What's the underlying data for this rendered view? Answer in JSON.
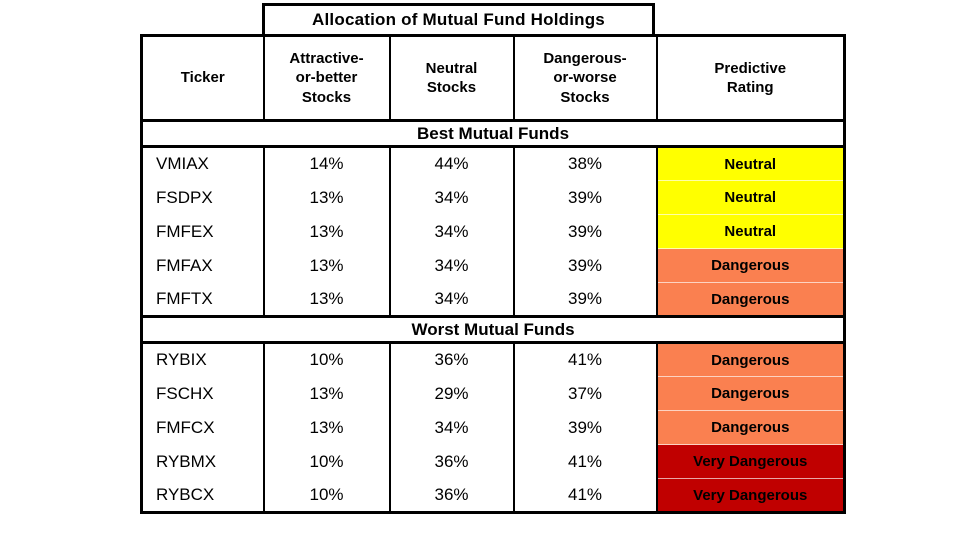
{
  "title": "Allocation of Mutual Fund Holdings",
  "table": {
    "columns": [
      {
        "name": "Ticker",
        "lines": [
          "Ticker"
        ]
      },
      {
        "name": "Attractive-or-better Stocks",
        "lines": [
          "Attractive-",
          "or-better",
          "Stocks"
        ]
      },
      {
        "name": "Neutral Stocks",
        "lines": [
          "Neutral",
          "Stocks"
        ]
      },
      {
        "name": "Dangerous-or-worse Stocks",
        "lines": [
          "Dangerous-",
          "or-worse",
          "Stocks"
        ]
      },
      {
        "name": "Predictive Rating",
        "lines": [
          "Predictive",
          "Rating"
        ]
      }
    ],
    "rating_colors": {
      "neutral": "#FFFF00",
      "dangerous": "#FA8050",
      "very_dangerous": "#C00000"
    },
    "sections": [
      {
        "label": "Best Mutual Funds",
        "rows": [
          {
            "ticker": "VMIAX",
            "attractive": "14%",
            "neutral": "44%",
            "dangerous": "38%",
            "rating": "Neutral",
            "rating_key": "neutral"
          },
          {
            "ticker": "FSDPX",
            "attractive": "13%",
            "neutral": "34%",
            "dangerous": "39%",
            "rating": "Neutral",
            "rating_key": "neutral"
          },
          {
            "ticker": "FMFEX",
            "attractive": "13%",
            "neutral": "34%",
            "dangerous": "39%",
            "rating": "Neutral",
            "rating_key": "neutral"
          },
          {
            "ticker": "FMFAX",
            "attractive": "13%",
            "neutral": "34%",
            "dangerous": "39%",
            "rating": "Dangerous",
            "rating_key": "dangerous"
          },
          {
            "ticker": "FMFTX",
            "attractive": "13%",
            "neutral": "34%",
            "dangerous": "39%",
            "rating": "Dangerous",
            "rating_key": "dangerous"
          }
        ]
      },
      {
        "label": "Worst Mutual Funds",
        "rows": [
          {
            "ticker": "RYBIX",
            "attractive": "10%",
            "neutral": "36%",
            "dangerous": "41%",
            "rating": "Dangerous",
            "rating_key": "dangerous"
          },
          {
            "ticker": "FSCHX",
            "attractive": "13%",
            "neutral": "29%",
            "dangerous": "37%",
            "rating": "Dangerous",
            "rating_key": "dangerous"
          },
          {
            "ticker": "FMFCX",
            "attractive": "13%",
            "neutral": "34%",
            "dangerous": "39%",
            "rating": "Dangerous",
            "rating_key": "dangerous"
          },
          {
            "ticker": "RYBMX",
            "attractive": "10%",
            "neutral": "36%",
            "dangerous": "41%",
            "rating": "Very Dangerous",
            "rating_key": "very_dangerous"
          },
          {
            "ticker": "RYBCX",
            "attractive": "10%",
            "neutral": "36%",
            "dangerous": "41%",
            "rating": "Very Dangerous",
            "rating_key": "very_dangerous"
          }
        ]
      }
    ]
  },
  "chart_data": {
    "type": "table",
    "title": "Allocation of Mutual Fund Holdings",
    "columns": [
      "Ticker",
      "Attractive-or-better Stocks",
      "Neutral Stocks",
      "Dangerous-or-worse Stocks",
      "Predictive Rating"
    ],
    "sections": [
      {
        "label": "Best Mutual Funds",
        "rows": [
          [
            "VMIAX",
            "14%",
            "44%",
            "38%",
            "Neutral"
          ],
          [
            "FSDPX",
            "13%",
            "34%",
            "39%",
            "Neutral"
          ],
          [
            "FMFEX",
            "13%",
            "34%",
            "39%",
            "Neutral"
          ],
          [
            "FMFAX",
            "13%",
            "34%",
            "39%",
            "Dangerous"
          ],
          [
            "FMFTX",
            "13%",
            "34%",
            "39%",
            "Dangerous"
          ]
        ]
      },
      {
        "label": "Worst Mutual Funds",
        "rows": [
          [
            "RYBIX",
            "10%",
            "36%",
            "41%",
            "Dangerous"
          ],
          [
            "FSCHX",
            "13%",
            "29%",
            "37%",
            "Dangerous"
          ],
          [
            "FMFCX",
            "13%",
            "34%",
            "39%",
            "Dangerous"
          ],
          [
            "RYBMX",
            "10%",
            "36%",
            "41%",
            "Very Dangerous"
          ],
          [
            "RYBCX",
            "10%",
            "36%",
            "41%",
            "Very Dangerous"
          ]
        ]
      }
    ],
    "rating_color_legend": {
      "Neutral": "#FFFF00",
      "Dangerous": "#FA8050",
      "Very Dangerous": "#C00000"
    }
  }
}
